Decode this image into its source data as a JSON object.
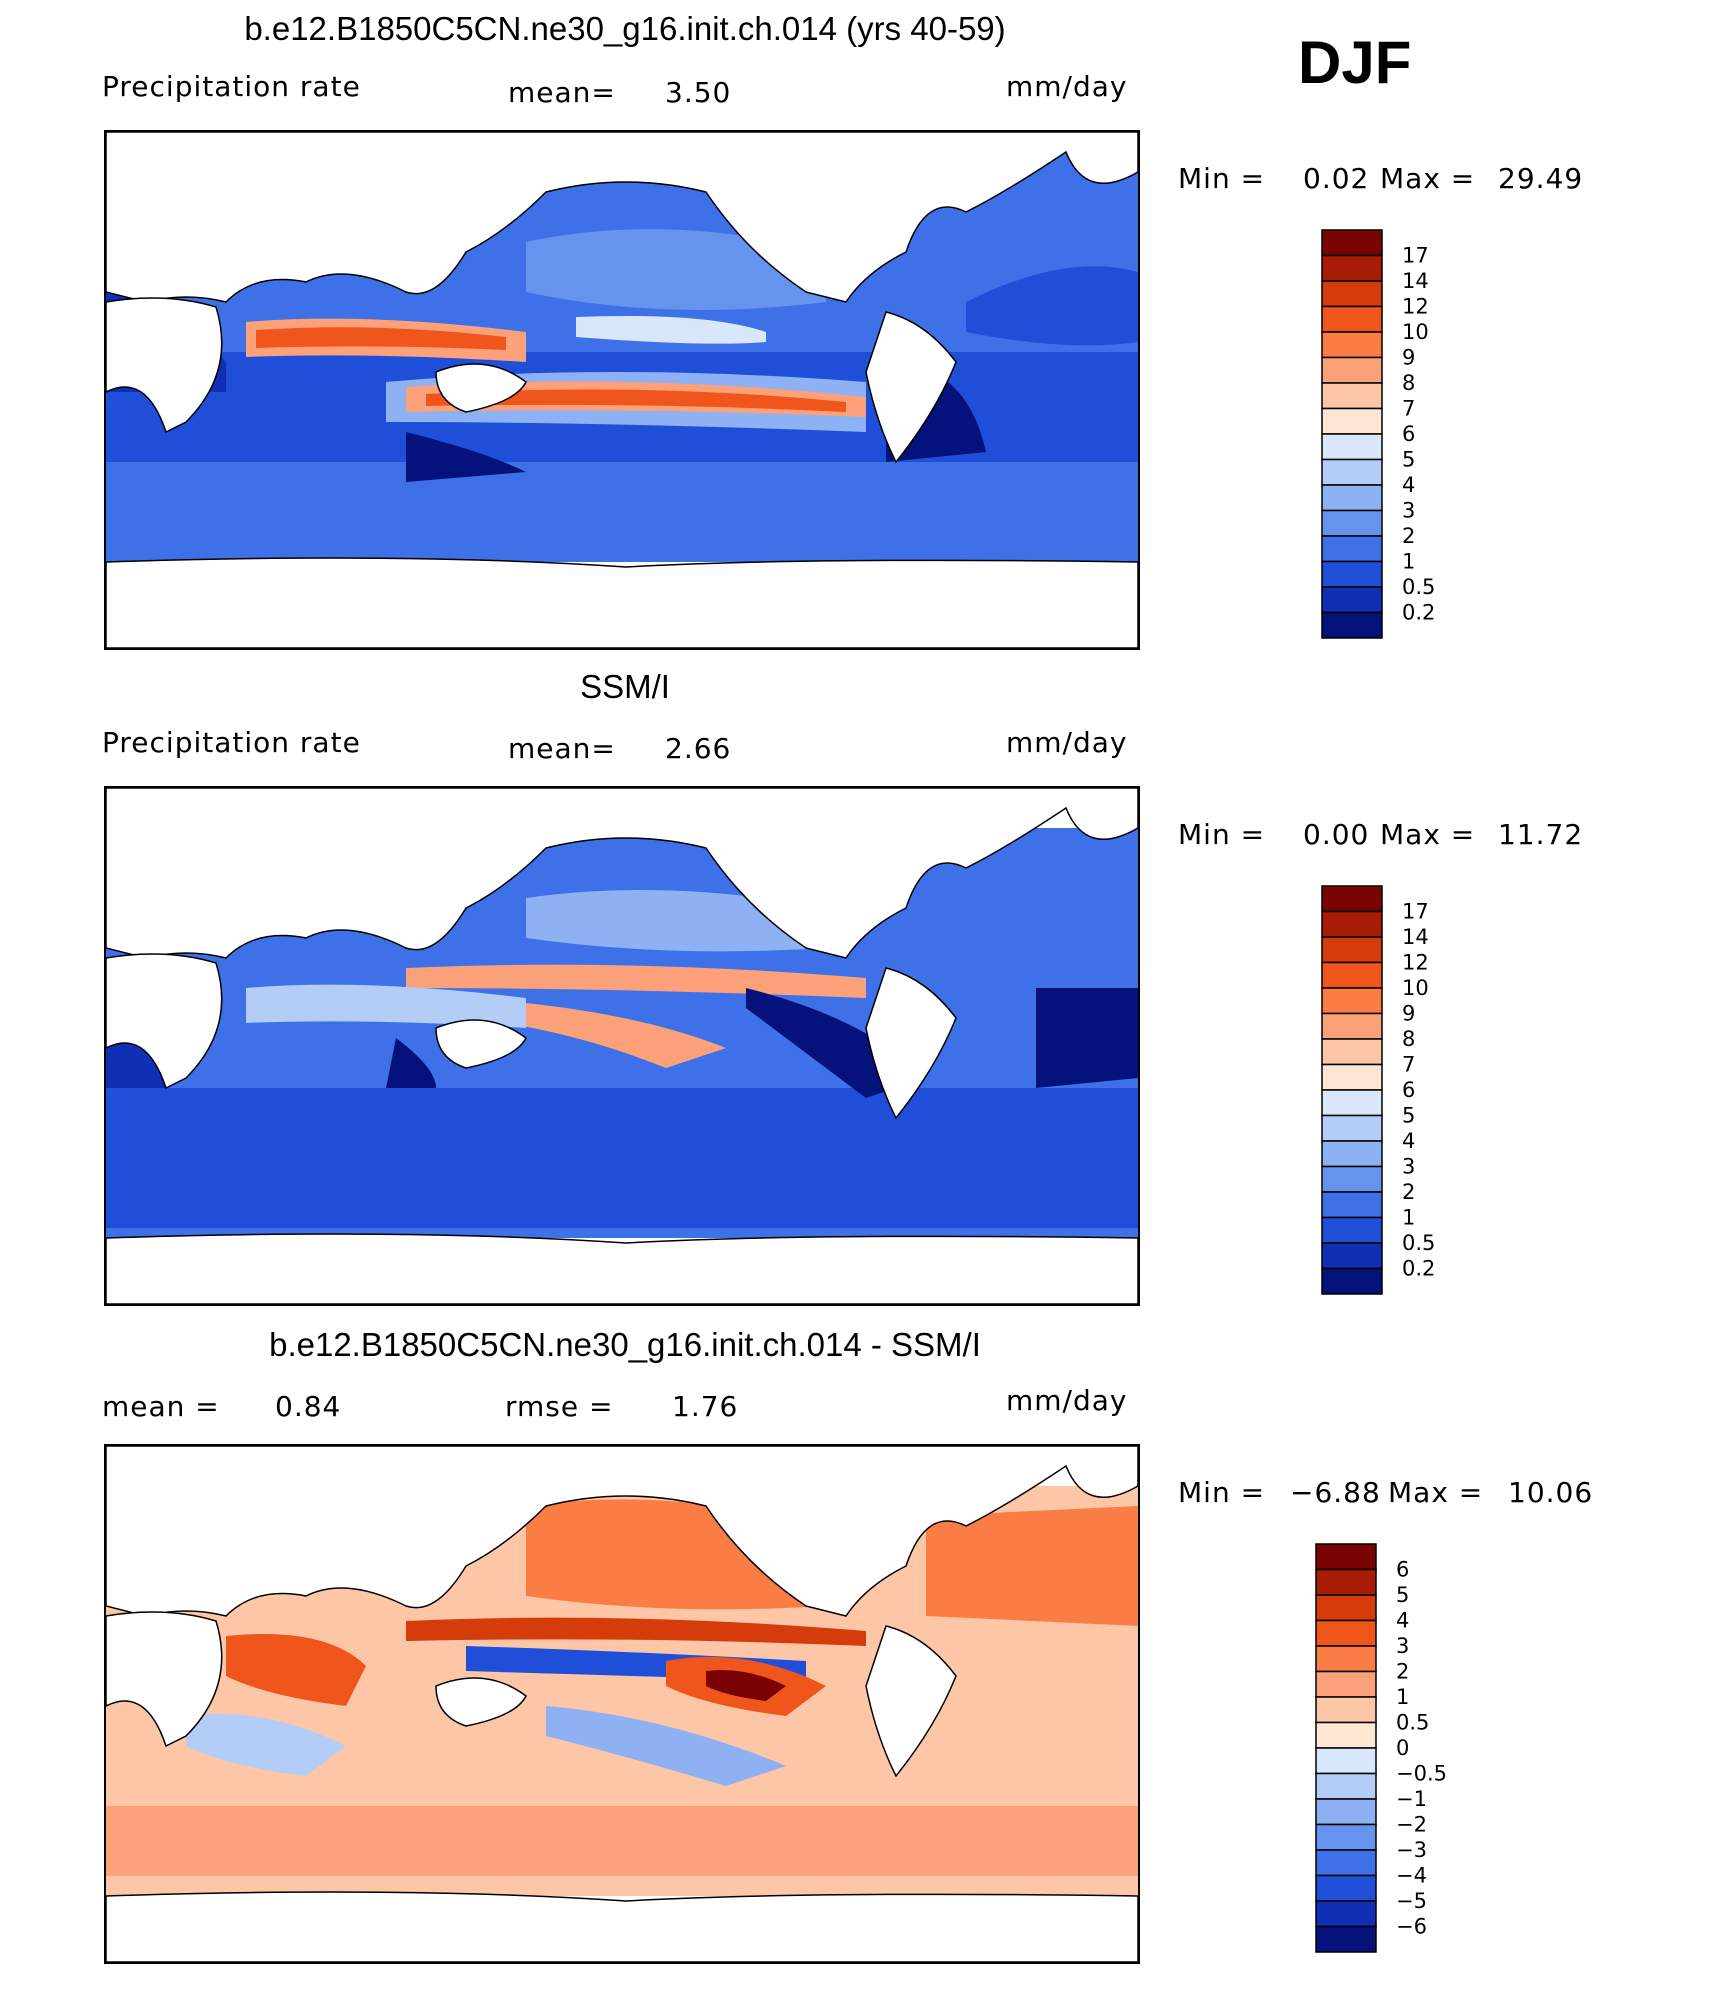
{
  "header": {
    "season": "DJF"
  },
  "panels": [
    {
      "id": "model",
      "title": "b.e12.B1850C5CN.ne30_g16.init.ch.014 (yrs 40-59)",
      "left_label": "Precipitation rate",
      "mean_label": "mean=",
      "mean_value": "3.50",
      "units": "mm/day",
      "min_label": "Min =",
      "min_value": "0.02",
      "max_label": "Max =",
      "max_value": "29.49",
      "colorbar": {
        "levels": [
          "17",
          "14",
          "12",
          "10",
          "9",
          "8",
          "7",
          "6",
          "5",
          "4",
          "3",
          "2",
          "1",
          "0.5",
          "0.2"
        ],
        "colors": [
          "#7a0403",
          "#a81c06",
          "#d53b0b",
          "#f0561c",
          "#fa7d45",
          "#fca17a",
          "#fdc7a7",
          "#fde6d2",
          "#d8e8fa",
          "#b3cdf6",
          "#8db1f2",
          "#6693ee",
          "#3e70e8",
          "#1f4fd9",
          "#0f2fb5",
          "#06127c"
        ]
      }
    },
    {
      "id": "obs",
      "title": "SSM/I",
      "left_label": "Precipitation rate",
      "mean_label": "mean=",
      "mean_value": "2.66",
      "units": "mm/day",
      "min_label": "Min =",
      "min_value": "0.00",
      "max_label": "Max =",
      "max_value": "11.72",
      "colorbar": {
        "levels": [
          "17",
          "14",
          "12",
          "10",
          "9",
          "8",
          "7",
          "6",
          "5",
          "4",
          "3",
          "2",
          "1",
          "0.5",
          "0.2"
        ],
        "colors": [
          "#7a0403",
          "#a81c06",
          "#d53b0b",
          "#f0561c",
          "#fa7d45",
          "#fca17a",
          "#fdc7a7",
          "#fde6d2",
          "#d8e8fa",
          "#b3cdf6",
          "#8db1f2",
          "#6693ee",
          "#3e70e8",
          "#1f4fd9",
          "#0f2fb5",
          "#06127c"
        ]
      }
    },
    {
      "id": "diff",
      "title": "b.e12.B1850C5CN.ne30_g16.init.ch.014 - SSM/I",
      "mean_label": "mean =",
      "mean_value": "0.84",
      "rmse_label": "rmse =",
      "rmse_value": "1.76",
      "units": "mm/day",
      "min_label": "Min =",
      "min_value": "−6.88",
      "max_label": "Max =",
      "max_value": "10.06",
      "colorbar": {
        "levels": [
          "6",
          "5",
          "4",
          "3",
          "2",
          "1",
          "0.5",
          "0",
          "−0.5",
          "−1",
          "−2",
          "−3",
          "−4",
          "−5",
          "−6"
        ],
        "colors": [
          "#7a0403",
          "#a81c06",
          "#d53b0b",
          "#f0561c",
          "#fa7d45",
          "#fca17a",
          "#fdc7a7",
          "#fde6d2",
          "#d8e8fa",
          "#b3cdf6",
          "#8db1f2",
          "#6693ee",
          "#3e70e8",
          "#1f4fd9",
          "#0f2fb5",
          "#06127c"
        ]
      }
    }
  ]
}
